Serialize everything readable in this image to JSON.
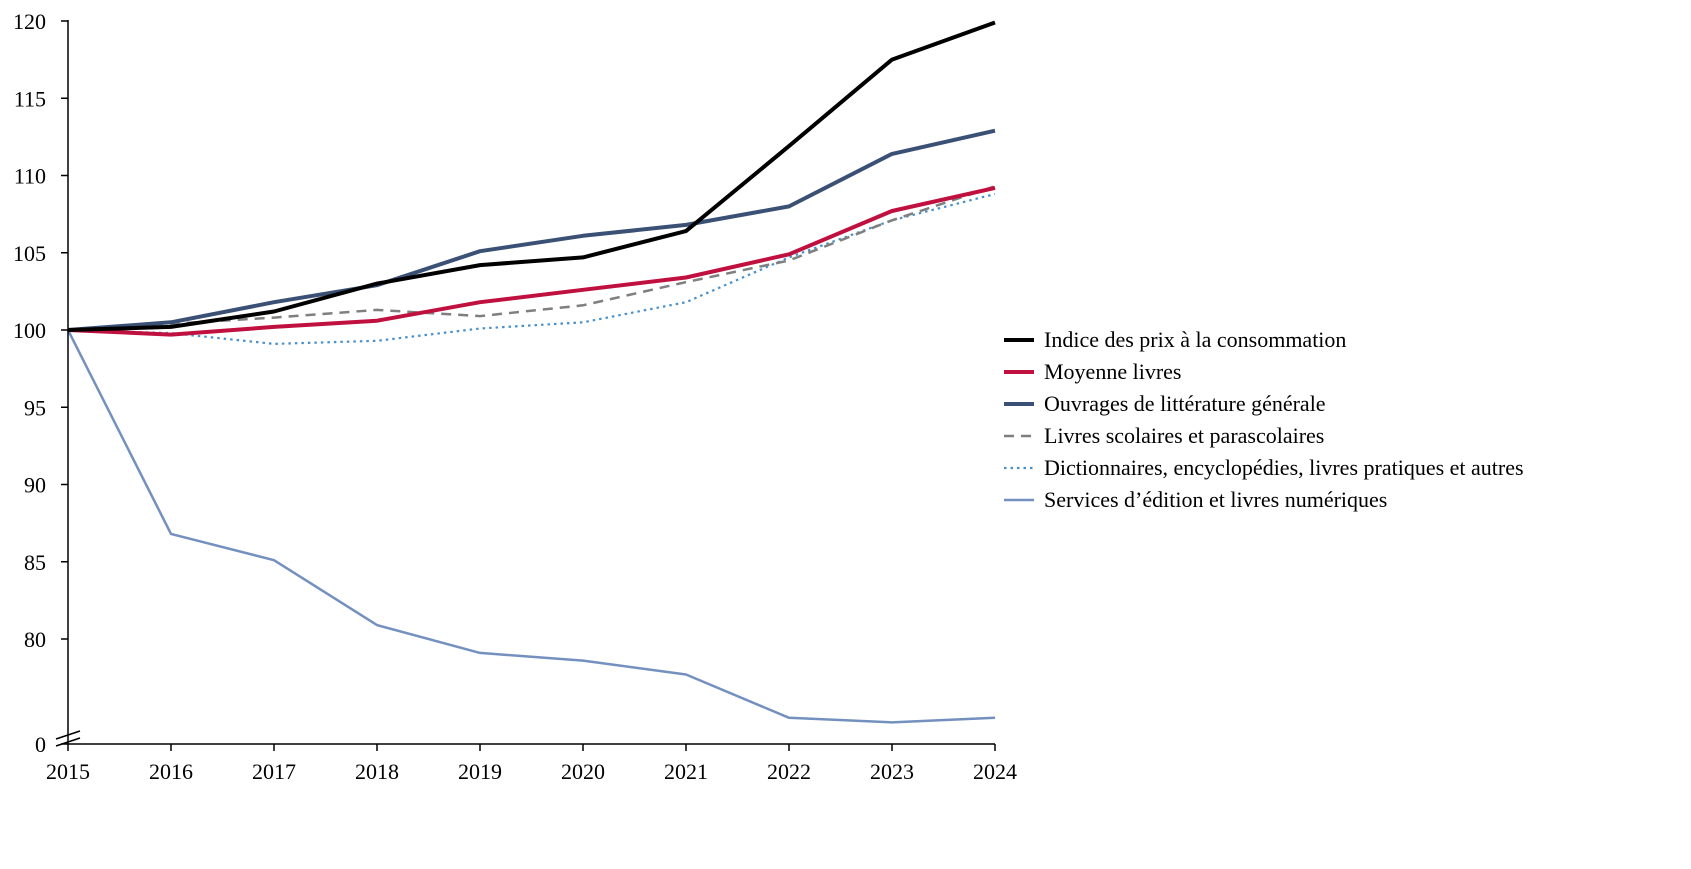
{
  "chart_data": {
    "type": "line",
    "title": "",
    "xlabel": "",
    "ylabel": "",
    "x": [
      "2015",
      "2016",
      "2017",
      "2018",
      "2019",
      "2020",
      "2021",
      "2022",
      "2023",
      "2024"
    ],
    "y_ticks": [
      "0",
      "80",
      "85",
      "90",
      "95",
      "100",
      "105",
      "110",
      "115",
      "120"
    ],
    "y_axis_break": true,
    "ylim": [
      73,
      120
    ],
    "legend_position": "right",
    "grid": false,
    "series": [
      {
        "name": "Indice des prix à la consommation",
        "color": "#000000",
        "style": "solid-thick",
        "values": [
          100,
          100.2,
          101.2,
          103.0,
          104.2,
          104.7,
          106.4,
          111.9,
          117.5,
          119.9
        ]
      },
      {
        "name": "Moyenne livres",
        "color": "#c0103f",
        "style": "solid-thick",
        "values": [
          100,
          99.7,
          100.2,
          100.6,
          101.8,
          102.6,
          103.4,
          104.9,
          107.7,
          109.2
        ]
      },
      {
        "name": "Ouvrages de littérature générale",
        "color": "#3a5074",
        "style": "solid-thick",
        "values": [
          100,
          100.5,
          101.8,
          102.9,
          105.1,
          106.1,
          106.8,
          108.0,
          111.4,
          112.9
        ]
      },
      {
        "name": "Livres scolaires et parascolaires",
        "color": "#7f7f7f",
        "style": "dashed",
        "values": [
          100,
          100.4,
          100.8,
          101.3,
          100.9,
          101.6,
          103.1,
          104.5,
          107.1,
          109.3
        ]
      },
      {
        "name": "Dictionnaires, encyclopédies, livres pratiques et autres",
        "color": "#4a90c8",
        "style": "dotted",
        "values": [
          100,
          99.8,
          99.1,
          99.3,
          100.1,
          100.5,
          101.8,
          104.7,
          107.1,
          108.8
        ]
      },
      {
        "name": "Services d’édition et livres numériques",
        "color": "#7390bf",
        "style": "solid-thin",
        "values": [
          100,
          86.8,
          85.1,
          80.9,
          79.1,
          78.6,
          77.7,
          74.9,
          74.6,
          74.9
        ]
      }
    ]
  }
}
